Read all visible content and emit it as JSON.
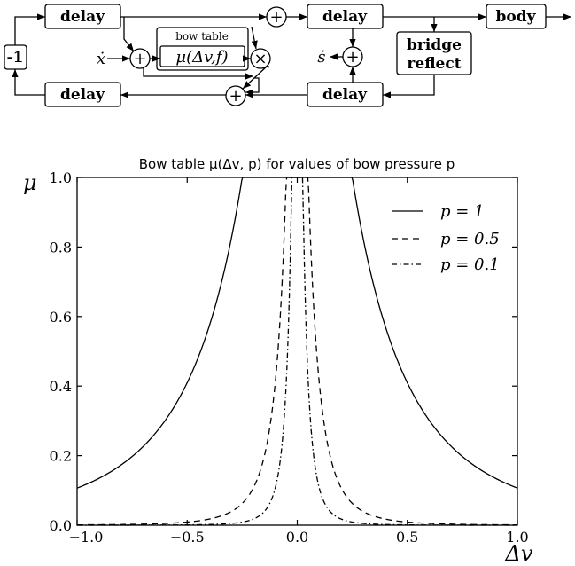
{
  "diagram": {
    "blocks": {
      "delay_top_left": "delay",
      "delay_top_mid": "delay",
      "delay_bottom_left": "delay",
      "delay_bottom_mid": "delay",
      "body": "body",
      "bridge_reflect_line1": "bridge",
      "bridge_reflect_line2": "reflect",
      "invert": "-1",
      "bow_table_label": "bow table",
      "bow_table_func": "μ(Δv,f)"
    },
    "operators": {
      "sum": "+",
      "multiply": "×"
    },
    "signals": {
      "x_dot": "ẋ",
      "s_dot": "ṡ"
    }
  },
  "chart_data": {
    "type": "line",
    "title": "Bow table μ(Δv, p) for values of bow pressure p",
    "xlabel": "Δv",
    "ylabel": "μ",
    "xlim": [
      -1.0,
      1.0
    ],
    "ylim": [
      0.0,
      1.0
    ],
    "xticks": [
      "−1.0",
      "−0.5",
      "0.0",
      "0.5",
      "1.0"
    ],
    "yticks": [
      "0.0",
      "0.2",
      "0.4",
      "0.6",
      "0.8",
      "1.0"
    ],
    "legend_position": "top-right",
    "series": [
      {
        "name": "p = 1",
        "style": "solid",
        "p": 1.0
      },
      {
        "name": "p = 0.5",
        "style": "dashed",
        "p": 0.5
      },
      {
        "name": "p = 0.1",
        "style": "dashdot",
        "p": 0.1
      }
    ]
  }
}
